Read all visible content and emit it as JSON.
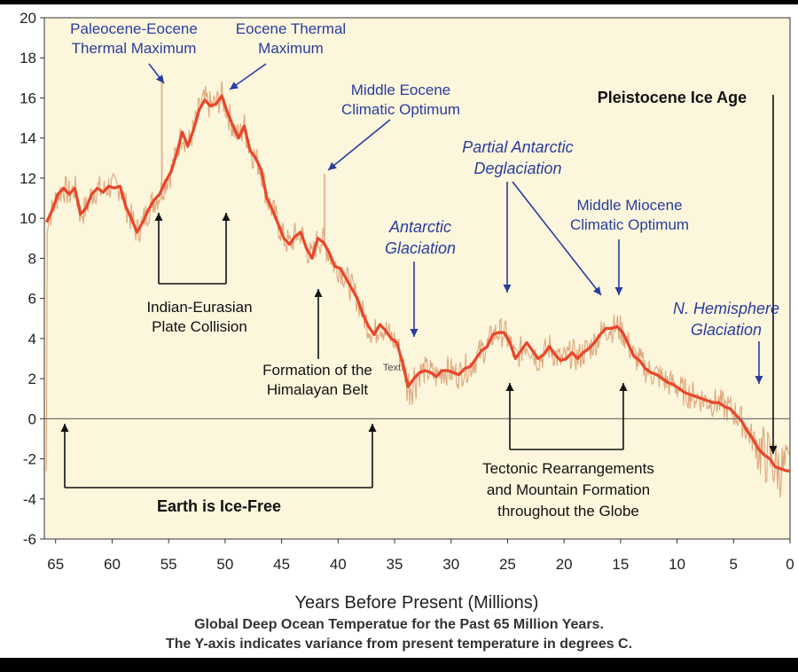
{
  "chart_data": {
    "type": "line",
    "xlabel": "Years Before Present (Millions)",
    "ylabel": "",
    "xlim": [
      66,
      0
    ],
    "ylim": [
      -6,
      20
    ],
    "x_ticks": [
      65,
      60,
      55,
      50,
      45,
      40,
      35,
      30,
      25,
      20,
      15,
      10,
      5,
      0
    ],
    "y_ticks": [
      20,
      18,
      16,
      14,
      12,
      10,
      8,
      6,
      4,
      2,
      0,
      -2,
      -4,
      -6
    ],
    "grid": false,
    "series": [
      {
        "name": "Smoothed deep ocean temperature",
        "color": "#e8462a",
        "x": [
          65.8,
          65.3,
          64.8,
          64.3,
          63.8,
          63.3,
          62.8,
          62.3,
          61.8,
          61.3,
          60.8,
          60.3,
          59.8,
          59.3,
          58.8,
          58.3,
          57.8,
          57.3,
          56.8,
          56.3,
          55.8,
          55.3,
          54.8,
          54.3,
          53.8,
          53.3,
          52.8,
          52.3,
          51.8,
          51.3,
          50.8,
          50.3,
          49.8,
          49.3,
          48.8,
          48.3,
          47.8,
          47.3,
          46.8,
          46.3,
          45.8,
          45.3,
          44.8,
          44.3,
          43.8,
          43.3,
          42.8,
          42.3,
          41.8,
          41.3,
          40.8,
          40.3,
          39.8,
          39.3,
          38.8,
          38.3,
          37.8,
          37.3,
          36.8,
          36.3,
          35.8,
          35.3,
          34.8,
          34.3,
          33.8,
          33.3,
          32.8,
          32.3,
          31.8,
          31.3,
          30.8,
          30.3,
          29.8,
          29.3,
          28.8,
          28.3,
          27.8,
          27.3,
          26.8,
          26.3,
          25.8,
          25.3,
          24.8,
          24.3,
          23.8,
          23.3,
          22.8,
          22.3,
          21.8,
          21.3,
          20.8,
          20.3,
          19.8,
          19.3,
          18.8,
          18.3,
          17.8,
          17.3,
          16.8,
          16.3,
          15.8,
          15.3,
          14.8,
          14.3,
          13.8,
          13.3,
          12.8,
          12.3,
          11.8,
          11.3,
          10.8,
          10.3,
          9.8,
          9.3,
          8.8,
          8.3,
          7.8,
          7.3,
          6.8,
          6.3,
          5.8,
          5.3,
          4.8,
          4.3,
          3.8,
          3.3,
          2.8,
          2.3,
          1.8,
          1.3,
          0.8,
          0.3,
          0.0
        ],
        "values": [
          9.8,
          10.4,
          11.2,
          11.5,
          11.2,
          11.5,
          10.2,
          10.5,
          11.2,
          11.5,
          11.3,
          11.6,
          11.5,
          11.6,
          10.6,
          10.0,
          9.3,
          9.8,
          10.4,
          10.9,
          11.2,
          11.8,
          12.3,
          13.2,
          14.3,
          13.6,
          14.4,
          15.4,
          15.9,
          15.6,
          15.7,
          16.1,
          15.3,
          14.6,
          14.0,
          14.6,
          13.4,
          13.0,
          12.4,
          11.0,
          10.4,
          9.7,
          9.0,
          8.7,
          9.1,
          9.3,
          8.5,
          8.0,
          9.0,
          8.8,
          8.3,
          7.6,
          7.5,
          7.0,
          6.5,
          6.0,
          5.2,
          4.6,
          4.2,
          4.7,
          4.4,
          4.0,
          3.8,
          2.8,
          1.6,
          2.0,
          2.3,
          2.4,
          2.3,
          2.1,
          2.4,
          2.4,
          2.3,
          2.2,
          2.5,
          2.6,
          3.0,
          3.4,
          3.6,
          4.2,
          4.3,
          4.3,
          3.8,
          3.0,
          3.4,
          3.8,
          3.4,
          3.0,
          3.2,
          3.6,
          3.2,
          2.9,
          3.0,
          3.3,
          3.0,
          3.3,
          3.5,
          3.8,
          4.2,
          4.5,
          4.5,
          4.6,
          4.3,
          3.7,
          3.1,
          2.9,
          2.5,
          2.3,
          2.2,
          2.0,
          1.8,
          1.7,
          1.5,
          1.3,
          1.2,
          1.1,
          1.0,
          0.9,
          0.8,
          0.8,
          0.6,
          0.5,
          0.2,
          -0.1,
          -0.6,
          -1.0,
          -1.5,
          -1.8,
          -2.0,
          -2.4,
          -2.5,
          -2.6,
          -2.6
        ]
      },
      {
        "name": "Raw deep ocean temperature",
        "color": "#e0a77d",
        "spikes": [
          {
            "x": 55.6,
            "value": 16.8
          },
          {
            "x": 41.2,
            "value": 12.2
          }
        ]
      }
    ],
    "annotations": [
      {
        "id": "petm",
        "lines": [
          "Paleocene-Eocene",
          "Thermal Maximum"
        ]
      },
      {
        "id": "etm",
        "lines": [
          "Eocene Thermal",
          "Maximum"
        ]
      },
      {
        "id": "meco",
        "lines": [
          "Middle Eocene",
          "Climatic Optimum"
        ]
      },
      {
        "id": "pleistocene",
        "lines": [
          "Pleistocene Ice Age"
        ]
      },
      {
        "id": "pad",
        "lines": [
          "Partial Antarctic",
          "Deglaciation"
        ]
      },
      {
        "id": "mmco",
        "lines": [
          "Middle Miocene",
          "Climatic Optimum"
        ]
      },
      {
        "id": "antarctic-glaciation",
        "lines": [
          "Antarctic",
          "Glaciation"
        ]
      },
      {
        "id": "nhg",
        "lines": [
          "N. Hemisphere",
          "Glaciation"
        ]
      },
      {
        "id": "indian-eurasian",
        "lines": [
          "Indian-Eurasian",
          "Plate Collision"
        ]
      },
      {
        "id": "himalayan",
        "lines": [
          "Formation of the",
          "Himalayan Belt"
        ]
      },
      {
        "id": "tectonic",
        "lines": [
          "Tectonic Rearrangements",
          "and Mountain Formation",
          "throughout the Globe"
        ]
      },
      {
        "id": "ice-free",
        "lines": [
          "Earth is Ice-Free"
        ]
      },
      {
        "id": "stray-text",
        "lines": [
          "Text"
        ]
      }
    ]
  },
  "caption": {
    "line1": "Global Deep Ocean Temperatue for the Past 65 Million Years.",
    "line2": "The Y-axis indicates variance from present temperature in degrees C."
  },
  "colors": {
    "plot_background": "#fbf6dc",
    "annotation_blue": "#2a3d9e",
    "annotation_black": "#111111",
    "axis": "#333333"
  }
}
